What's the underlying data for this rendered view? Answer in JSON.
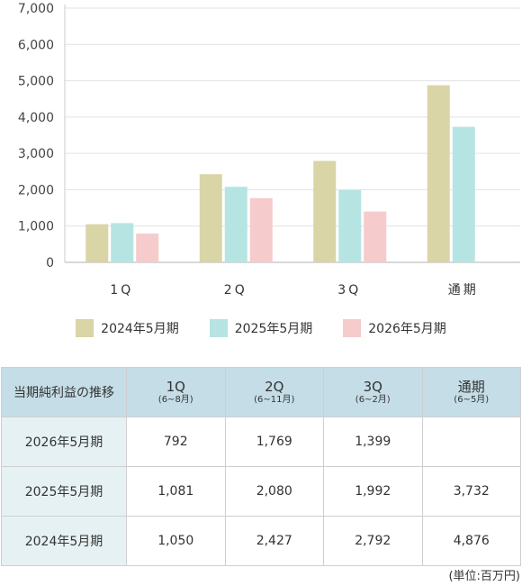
{
  "chart_data": {
    "type": "bar",
    "categories": [
      "1Q",
      "2Q",
      "3Q",
      "通期"
    ],
    "series": [
      {
        "name": "2024年5月期",
        "color": "#d9d5a6",
        "values": [
          1050,
          2427,
          2792,
          4876
        ]
      },
      {
        "name": "2025年5月期",
        "color": "#b5e4e3",
        "values": [
          1081,
          2080,
          1992,
          3732
        ]
      },
      {
        "name": "2026年5月期",
        "color": "#f6cbcc",
        "values": [
          792,
          1769,
          1399,
          null
        ]
      }
    ],
    "ylim": [
      0,
      7000
    ],
    "yticks": [
      "0",
      "1,000",
      "2,000",
      "3,000",
      "4,000",
      "5,000",
      "6,000",
      "7,000"
    ],
    "category_labels": [
      "1Q",
      "2Q",
      "3Q",
      "通期"
    ],
    "grid": true,
    "legend": "bottom-center"
  },
  "table": {
    "corner": "当期純利益の推移",
    "columns": [
      {
        "main": "1Q",
        "sub": "(6~8月)"
      },
      {
        "main": "2Q",
        "sub": "(6~11月)"
      },
      {
        "main": "3Q",
        "sub": "(6~2月)"
      },
      {
        "main": "通期",
        "sub": "(6~5月)"
      }
    ],
    "rows": [
      {
        "label": "2026年5月期",
        "cells": [
          "792",
          "1,769",
          "1,399",
          ""
        ]
      },
      {
        "label": "2025年5月期",
        "cells": [
          "1,081",
          "2,080",
          "1,992",
          "3,732"
        ]
      },
      {
        "label": "2024年5月期",
        "cells": [
          "1,050",
          "2,427",
          "2,792",
          "4,876"
        ]
      }
    ]
  },
  "unit_note": "(単位:百万円)"
}
